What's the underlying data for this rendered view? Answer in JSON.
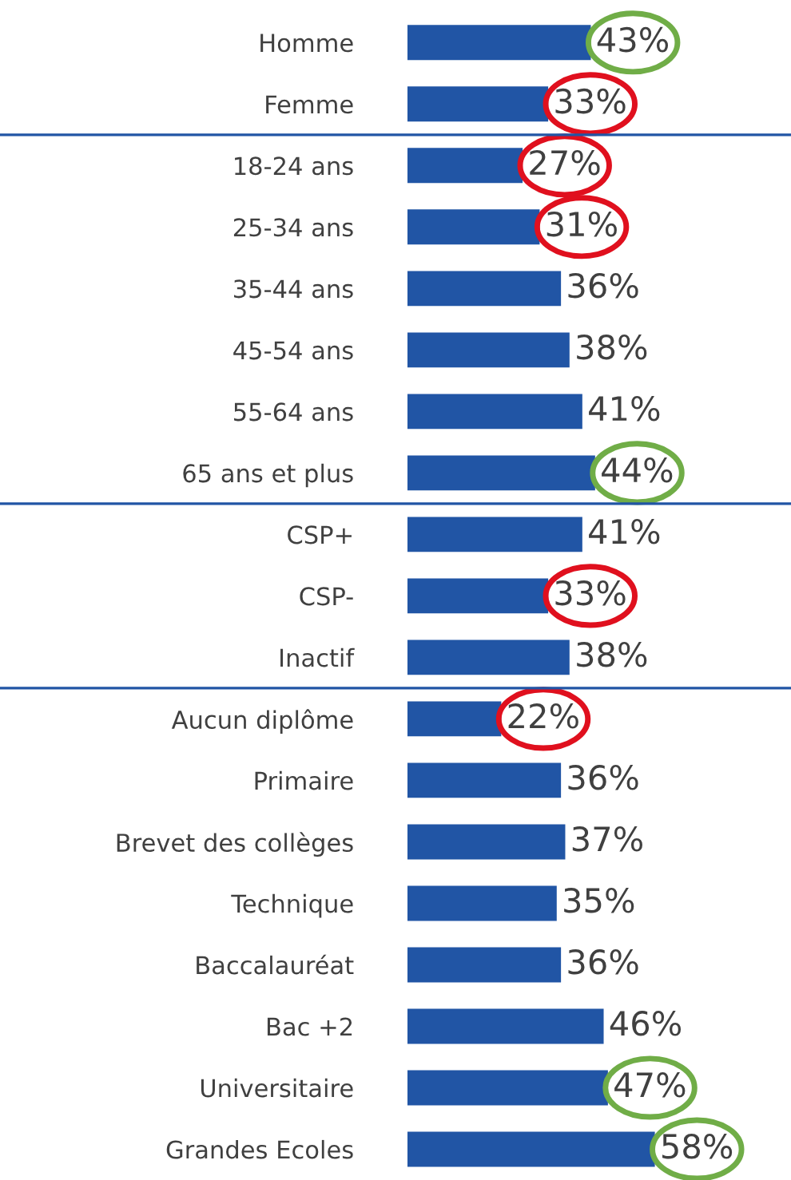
{
  "chart_data": {
    "type": "bar",
    "orientation": "horizontal",
    "categories": [
      "Homme",
      "Femme",
      "18-24 ans",
      "25-34 ans",
      "35-44 ans",
      "45-54 ans",
      "55-64 ans",
      "65 ans et plus",
      "CSP+",
      "CSP-",
      "Inactif",
      "Aucun diplôme",
      "Primaire",
      "Brevet des collèges",
      "Technique",
      "Baccalauréat",
      "Bac +2",
      "Universitaire",
      "Grandes Ecoles"
    ],
    "values": [
      43,
      33,
      27,
      31,
      36,
      38,
      41,
      44,
      41,
      33,
      38,
      22,
      36,
      37,
      35,
      36,
      46,
      47,
      58
    ],
    "value_labels": [
      "43%",
      "33%",
      "27%",
      "31%",
      "36%",
      "38%",
      "41%",
      "44%",
      "41%",
      "33%",
      "38%",
      "22%",
      "36%",
      "37%",
      "35%",
      "36%",
      "46%",
      "47%",
      "58%"
    ],
    "color": "#2155a5",
    "tick_labels": "y"
  }
}
